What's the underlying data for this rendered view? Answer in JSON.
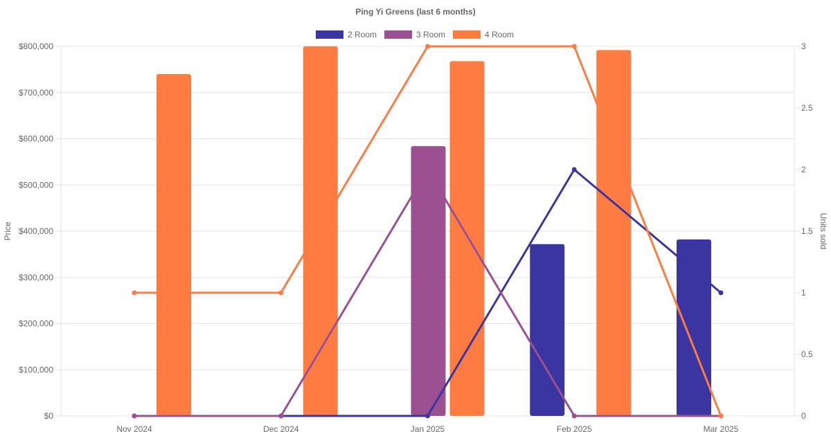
{
  "chart_data": {
    "type": "bar",
    "title": "Ping Yi Greens (last 6 months)",
    "categories": [
      "Nov 2024",
      "Dec 2024",
      "Jan 2025",
      "Feb 2025",
      "Mar 2025"
    ],
    "y_left": {
      "label": "Price",
      "range": [
        0,
        800000
      ],
      "ticks": [
        0,
        100000,
        200000,
        300000,
        400000,
        500000,
        600000,
        700000,
        800000
      ],
      "tick_labels": [
        "$0",
        "$100,000",
        "$200,000",
        "$300,000",
        "$400,000",
        "$500,000",
        "$600,000",
        "$700,000",
        "$800,000"
      ]
    },
    "y_right": {
      "label": "Units sold",
      "range": [
        0,
        3
      ],
      "ticks": [
        0,
        0.5,
        1,
        1.5,
        2,
        2.5,
        3
      ],
      "tick_labels": [
        "0",
        "0.5",
        "1",
        "1.5",
        "2",
        "2.5",
        "3"
      ]
    },
    "series": [
      {
        "name": "2 Room",
        "color": "#3a35a0",
        "price": [
          null,
          null,
          null,
          372000,
          382000
        ],
        "units_sold": [
          0,
          0,
          0,
          2,
          1
        ]
      },
      {
        "name": "3 Room",
        "color": "#9c5092",
        "price": [
          null,
          null,
          584000,
          null,
          null
        ],
        "units_sold": [
          0,
          0,
          2,
          0,
          0
        ]
      },
      {
        "name": "4 Room",
        "color": "#fe7c42",
        "price": [
          740000,
          800000,
          768000,
          792000,
          null
        ],
        "units_sold": [
          1,
          1,
          3,
          3,
          0
        ]
      }
    ],
    "grid": true,
    "legend_position": "top"
  }
}
